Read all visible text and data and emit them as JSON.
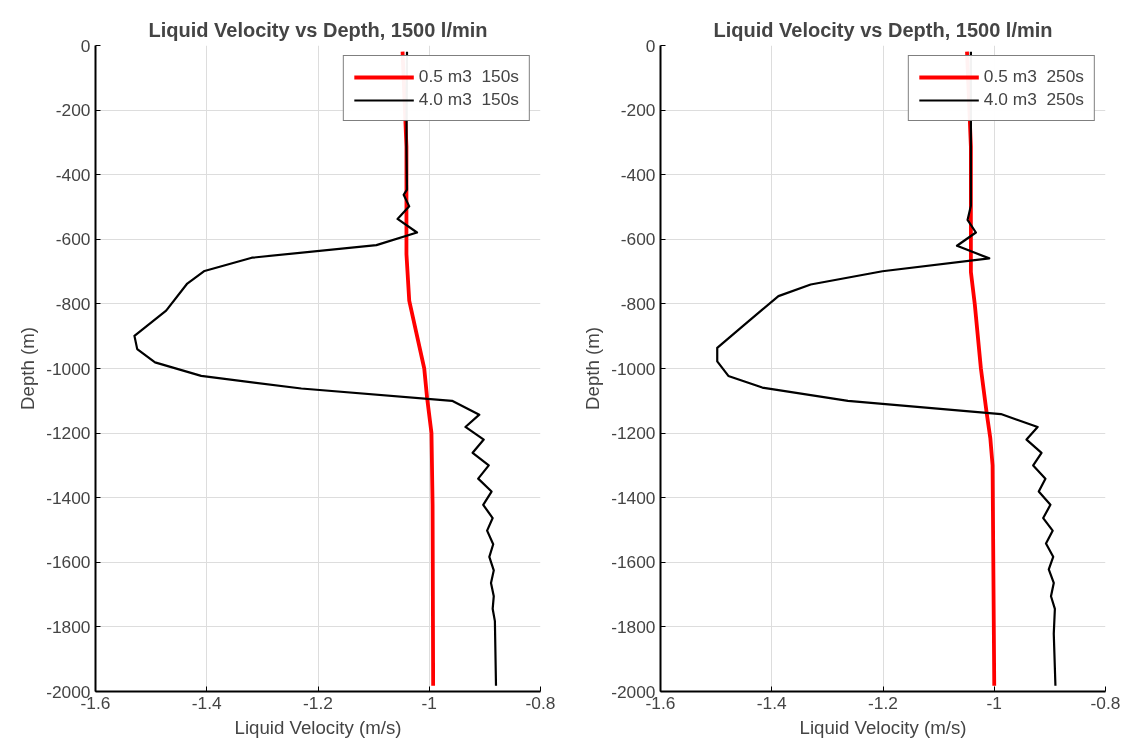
{
  "chart_data": [
    {
      "type": "line",
      "title": "Liquid Velocity vs Depth, 1500 l/min",
      "xlabel": "Liquid Velocity (m/s)",
      "ylabel": "Depth (m)",
      "xlim": [
        -1.6,
        -0.8
      ],
      "xticks": [
        -1.6,
        -1.4,
        -1.2,
        -1,
        -0.8
      ],
      "ylim": [
        -2000,
        0
      ],
      "yticks": [
        -2000,
        -1800,
        -1600,
        -1400,
        -1200,
        -1000,
        -800,
        -600,
        -400,
        -200,
        0
      ],
      "grid": true,
      "legend": "top right",
      "series": [
        {
          "name": "0.5 m3  150s",
          "color": "#ff0000",
          "x": [
            -1.048,
            -1.041,
            -1.041,
            -1.036,
            -1.009,
            -1.004,
            -0.996,
            -0.994,
            -0.993
          ],
          "values": [
            -19,
            -313,
            -646,
            -790,
            -1000,
            -1089,
            -1200,
            -1422,
            -1982
          ]
        },
        {
          "name": "4.0 m3  150s",
          "color": "#000000",
          "x": [
            -1.04,
            -1.041,
            -1.04,
            -1.046,
            -1.036,
            -1.057,
            -1.022,
            -1.095,
            -1.319,
            -1.404,
            -1.435,
            -1.473,
            -1.53,
            -1.525,
            -1.493,
            -1.41,
            -1.23,
            -0.959,
            -0.91,
            -0.935,
            -0.902,
            -0.922,
            -0.893,
            -0.912,
            -0.888,
            -0.903,
            -0.886,
            -0.896,
            -0.885,
            -0.892,
            -0.884,
            -0.889,
            -0.884,
            -0.886,
            -0.882,
            -0.88
          ],
          "values": [
            -19,
            -313,
            -446,
            -462,
            -498,
            -537,
            -579,
            -618,
            -657,
            -698,
            -737,
            -821,
            -899,
            -940,
            -981,
            -1023,
            -1062,
            -1100,
            -1143,
            -1181,
            -1220,
            -1261,
            -1300,
            -1341,
            -1381,
            -1422,
            -1463,
            -1502,
            -1544,
            -1583,
            -1625,
            -1664,
            -1705,
            -1744,
            -1782,
            -1982
          ]
        }
      ]
    },
    {
      "type": "line",
      "title": "Liquid Velocity vs Depth, 1500 l/min",
      "xlabel": "Liquid Velocity (m/s)",
      "ylabel": "Depth (m)",
      "xlim": [
        -1.6,
        -0.8
      ],
      "xticks": [
        -1.6,
        -1.4,
        -1.2,
        -1,
        -0.8
      ],
      "ylim": [
        -2000,
        0
      ],
      "yticks": [
        -2000,
        -1800,
        -1600,
        -1400,
        -1200,
        -1000,
        -800,
        -600,
        -400,
        -200,
        0
      ],
      "grid": true,
      "legend": "top right",
      "series": [
        {
          "name": "0.5 m3  250s",
          "color": "#ff0000",
          "x": [
            -1.049,
            -1.042,
            -1.042,
            -1.035,
            -1.024,
            -1.014,
            -1.007,
            -1.003,
            -1.0
          ],
          "values": [
            -19,
            -313,
            -701,
            -801,
            -1000,
            -1133,
            -1217,
            -1300,
            -1982
          ]
        },
        {
          "name": "4.0 m3  250s",
          "color": "#000000",
          "x": [
            -1.042,
            -1.042,
            -1.042,
            -1.048,
            -1.033,
            -1.067,
            -1.009,
            -1.201,
            -1.33,
            -1.388,
            -1.417,
            -1.451,
            -1.498,
            -1.498,
            -1.478,
            -1.417,
            -1.263,
            -0.988,
            -0.922,
            -0.942,
            -0.915,
            -0.93,
            -0.908,
            -0.92,
            -0.899,
            -0.912,
            -0.895,
            -0.907,
            -0.894,
            -0.902,
            -0.893,
            -0.898,
            -0.891,
            -0.893,
            -0.89
          ],
          "values": [
            -19,
            -313,
            -496,
            -540,
            -579,
            -620,
            -659,
            -699,
            -740,
            -776,
            -818,
            -867,
            -936,
            -978,
            -1023,
            -1059,
            -1100,
            -1141,
            -1181,
            -1220,
            -1261,
            -1300,
            -1341,
            -1381,
            -1422,
            -1463,
            -1502,
            -1542,
            -1583,
            -1622,
            -1664,
            -1705,
            -1744,
            -1821,
            -1982
          ]
        }
      ]
    }
  ]
}
